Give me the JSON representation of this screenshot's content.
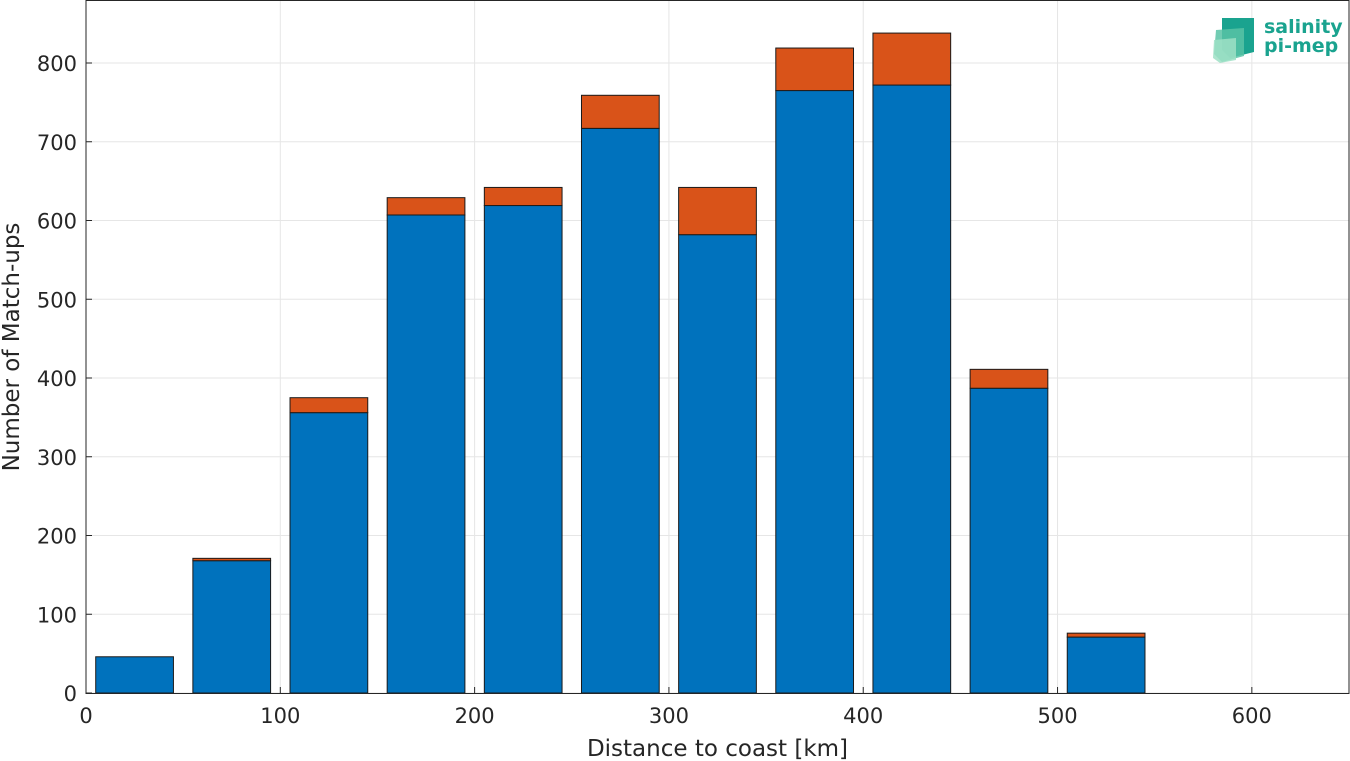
{
  "chart_data": {
    "type": "bar",
    "stacked": true,
    "xlabel": "Distance to coast [km]",
    "ylabel": "Number of Match-ups",
    "xlim": [
      0,
      650
    ],
    "ylim": [
      0,
      880
    ],
    "xticks": [
      0,
      100,
      200,
      300,
      400,
      500,
      600
    ],
    "yticks": [
      0,
      100,
      200,
      300,
      400,
      500,
      600,
      700,
      800
    ],
    "grid": true,
    "bar_width": 40,
    "x": [
      25,
      75,
      125,
      175,
      225,
      275,
      325,
      375,
      425,
      475,
      525
    ],
    "series": [
      {
        "color": "#0072bd",
        "values": [
          46,
          168,
          356,
          607,
          619,
          717,
          582,
          765,
          772,
          387,
          71
        ]
      },
      {
        "color": "#d95319",
        "values": [
          0,
          3,
          19,
          22,
          23,
          42,
          60,
          54,
          66,
          24,
          5
        ]
      }
    ]
  },
  "logo": {
    "line1": "salinity",
    "line2": "pi-mep",
    "colors": [
      "#1aa38f",
      "#7fd4b8"
    ]
  }
}
